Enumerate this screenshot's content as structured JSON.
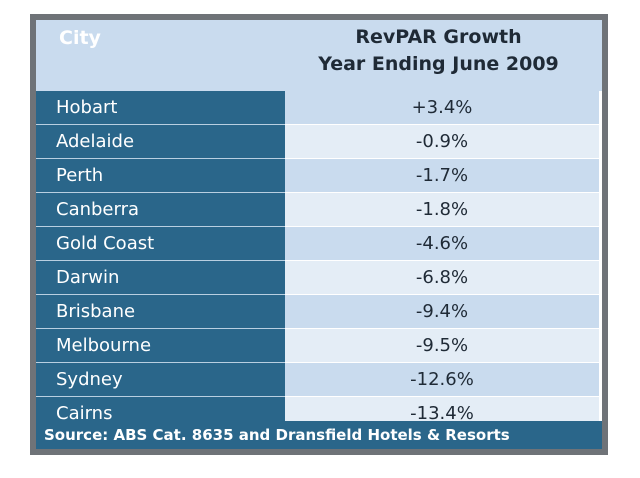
{
  "header": {
    "city_label": "City",
    "growth_label_line1": "RevPAR Growth",
    "growth_label_line2": "Year Ending June 2009"
  },
  "rows": [
    {
      "city": "Hobart",
      "value": "+3.4%"
    },
    {
      "city": "Adelaide",
      "value": "-0.9%"
    },
    {
      "city": "Perth",
      "value": "-1.7%"
    },
    {
      "city": "Canberra",
      "value": "-1.8%"
    },
    {
      "city": "Gold Coast",
      "value": "-4.6%"
    },
    {
      "city": "Darwin",
      "value": "-6.8%"
    },
    {
      "city": "Brisbane",
      "value": "-9.4%"
    },
    {
      "city": "Melbourne",
      "value": "-9.5%"
    },
    {
      "city": "Sydney",
      "value": "-12.6%"
    },
    {
      "city": "Cairns",
      "value": "-13.4%"
    }
  ],
  "source": "Source: ABS Cat. 8635 and Dransfield Hotels & Resorts",
  "colors": {
    "city_column": "#2a668a",
    "header_bg": "#c9dbee",
    "value_row_dark": "#c9dbee",
    "value_row_light": "#e4edf6",
    "frame": "#6f7378"
  }
}
